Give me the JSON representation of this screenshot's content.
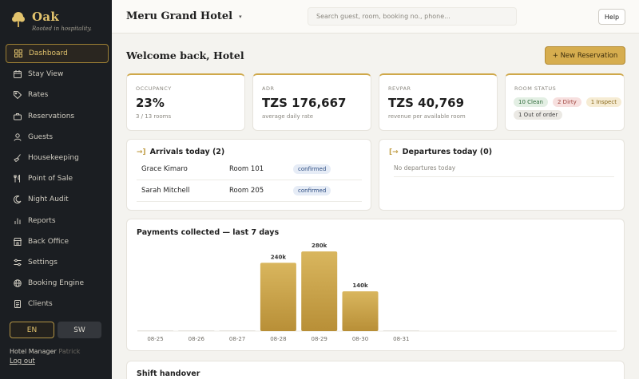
{
  "sidebar": {
    "brand_name": "Oak",
    "brand_tagline": "Rooted in hospitality.",
    "items": [
      {
        "label": "Dashboard",
        "icon": "grid-icon"
      },
      {
        "label": "Stay View",
        "icon": "calendar-icon"
      },
      {
        "label": "Rates",
        "icon": "tag-icon"
      },
      {
        "label": "Reservations",
        "icon": "briefcase-icon"
      },
      {
        "label": "Guests",
        "icon": "user-icon"
      },
      {
        "label": "Housekeeping",
        "icon": "broom-icon"
      },
      {
        "label": "Point of Sale",
        "icon": "utensils-icon"
      },
      {
        "label": "Night Audit",
        "icon": "moon-icon"
      },
      {
        "label": "Reports",
        "icon": "bar-chart-icon"
      },
      {
        "label": "Back Office",
        "icon": "store-icon"
      },
      {
        "label": "Settings",
        "icon": "sliders-icon"
      },
      {
        "label": "Booking Engine",
        "icon": "globe-icon"
      },
      {
        "label": "Clients",
        "icon": "file-icon"
      }
    ],
    "lang_en": "EN",
    "lang_sw": "SW",
    "user_role": "Hotel Manager",
    "user_name": "Patrick",
    "logout": "Log out"
  },
  "topbar": {
    "hotel_name": "Meru Grand Hotel",
    "search_placeholder": "Search guest, room, booking no., phone...",
    "help": "Help"
  },
  "main": {
    "welcome": "Welcome back, Hotel",
    "new_reservation": "+ New Reservation",
    "kpis": [
      {
        "label": "OCCUPANCY",
        "value": "23%",
        "sub": "3 / 13 rooms"
      },
      {
        "label": "ADR",
        "value": "TZS 176,667",
        "sub": "average daily rate"
      },
      {
        "label": "REVPAR",
        "value": "TZS 40,769",
        "sub": "revenue per available room"
      }
    ],
    "room_status": {
      "label": "ROOM STATUS",
      "clean": "10 Clean",
      "dirty": "2 Dirty",
      "inspect": "1 Inspect",
      "out_of_order": "1 Out of order"
    },
    "arrivals": {
      "title": "Arrivals today (2)",
      "rows": [
        {
          "guest": "Grace Kimaro",
          "room": "Room 101",
          "status": "confirmed"
        },
        {
          "guest": "Sarah Mitchell",
          "room": "Room 205",
          "status": "confirmed"
        }
      ]
    },
    "departures": {
      "title": "Departures today (0)",
      "empty": "No departures today"
    },
    "payments_title": "Payments collected — last 7 days",
    "handover_title": "Shift handover"
  },
  "colors": {
    "accent": "#d6ad4f",
    "bar_top": "#d9b65e",
    "bar_bottom": "#b88f37",
    "sidebar_bg": "#1b1e22"
  },
  "chart_data": {
    "type": "bar",
    "title": "Payments collected — last 7 days",
    "categories": [
      "08-25",
      "08-26",
      "08-27",
      "08-28",
      "08-29",
      "08-30",
      "08-31"
    ],
    "values": [
      0,
      0,
      0,
      240000,
      280000,
      140000,
      0
    ],
    "data_labels": [
      "",
      "",
      "",
      "240k",
      "280k",
      "140k",
      ""
    ],
    "ylim": [
      0,
      300000
    ],
    "grid": false
  }
}
